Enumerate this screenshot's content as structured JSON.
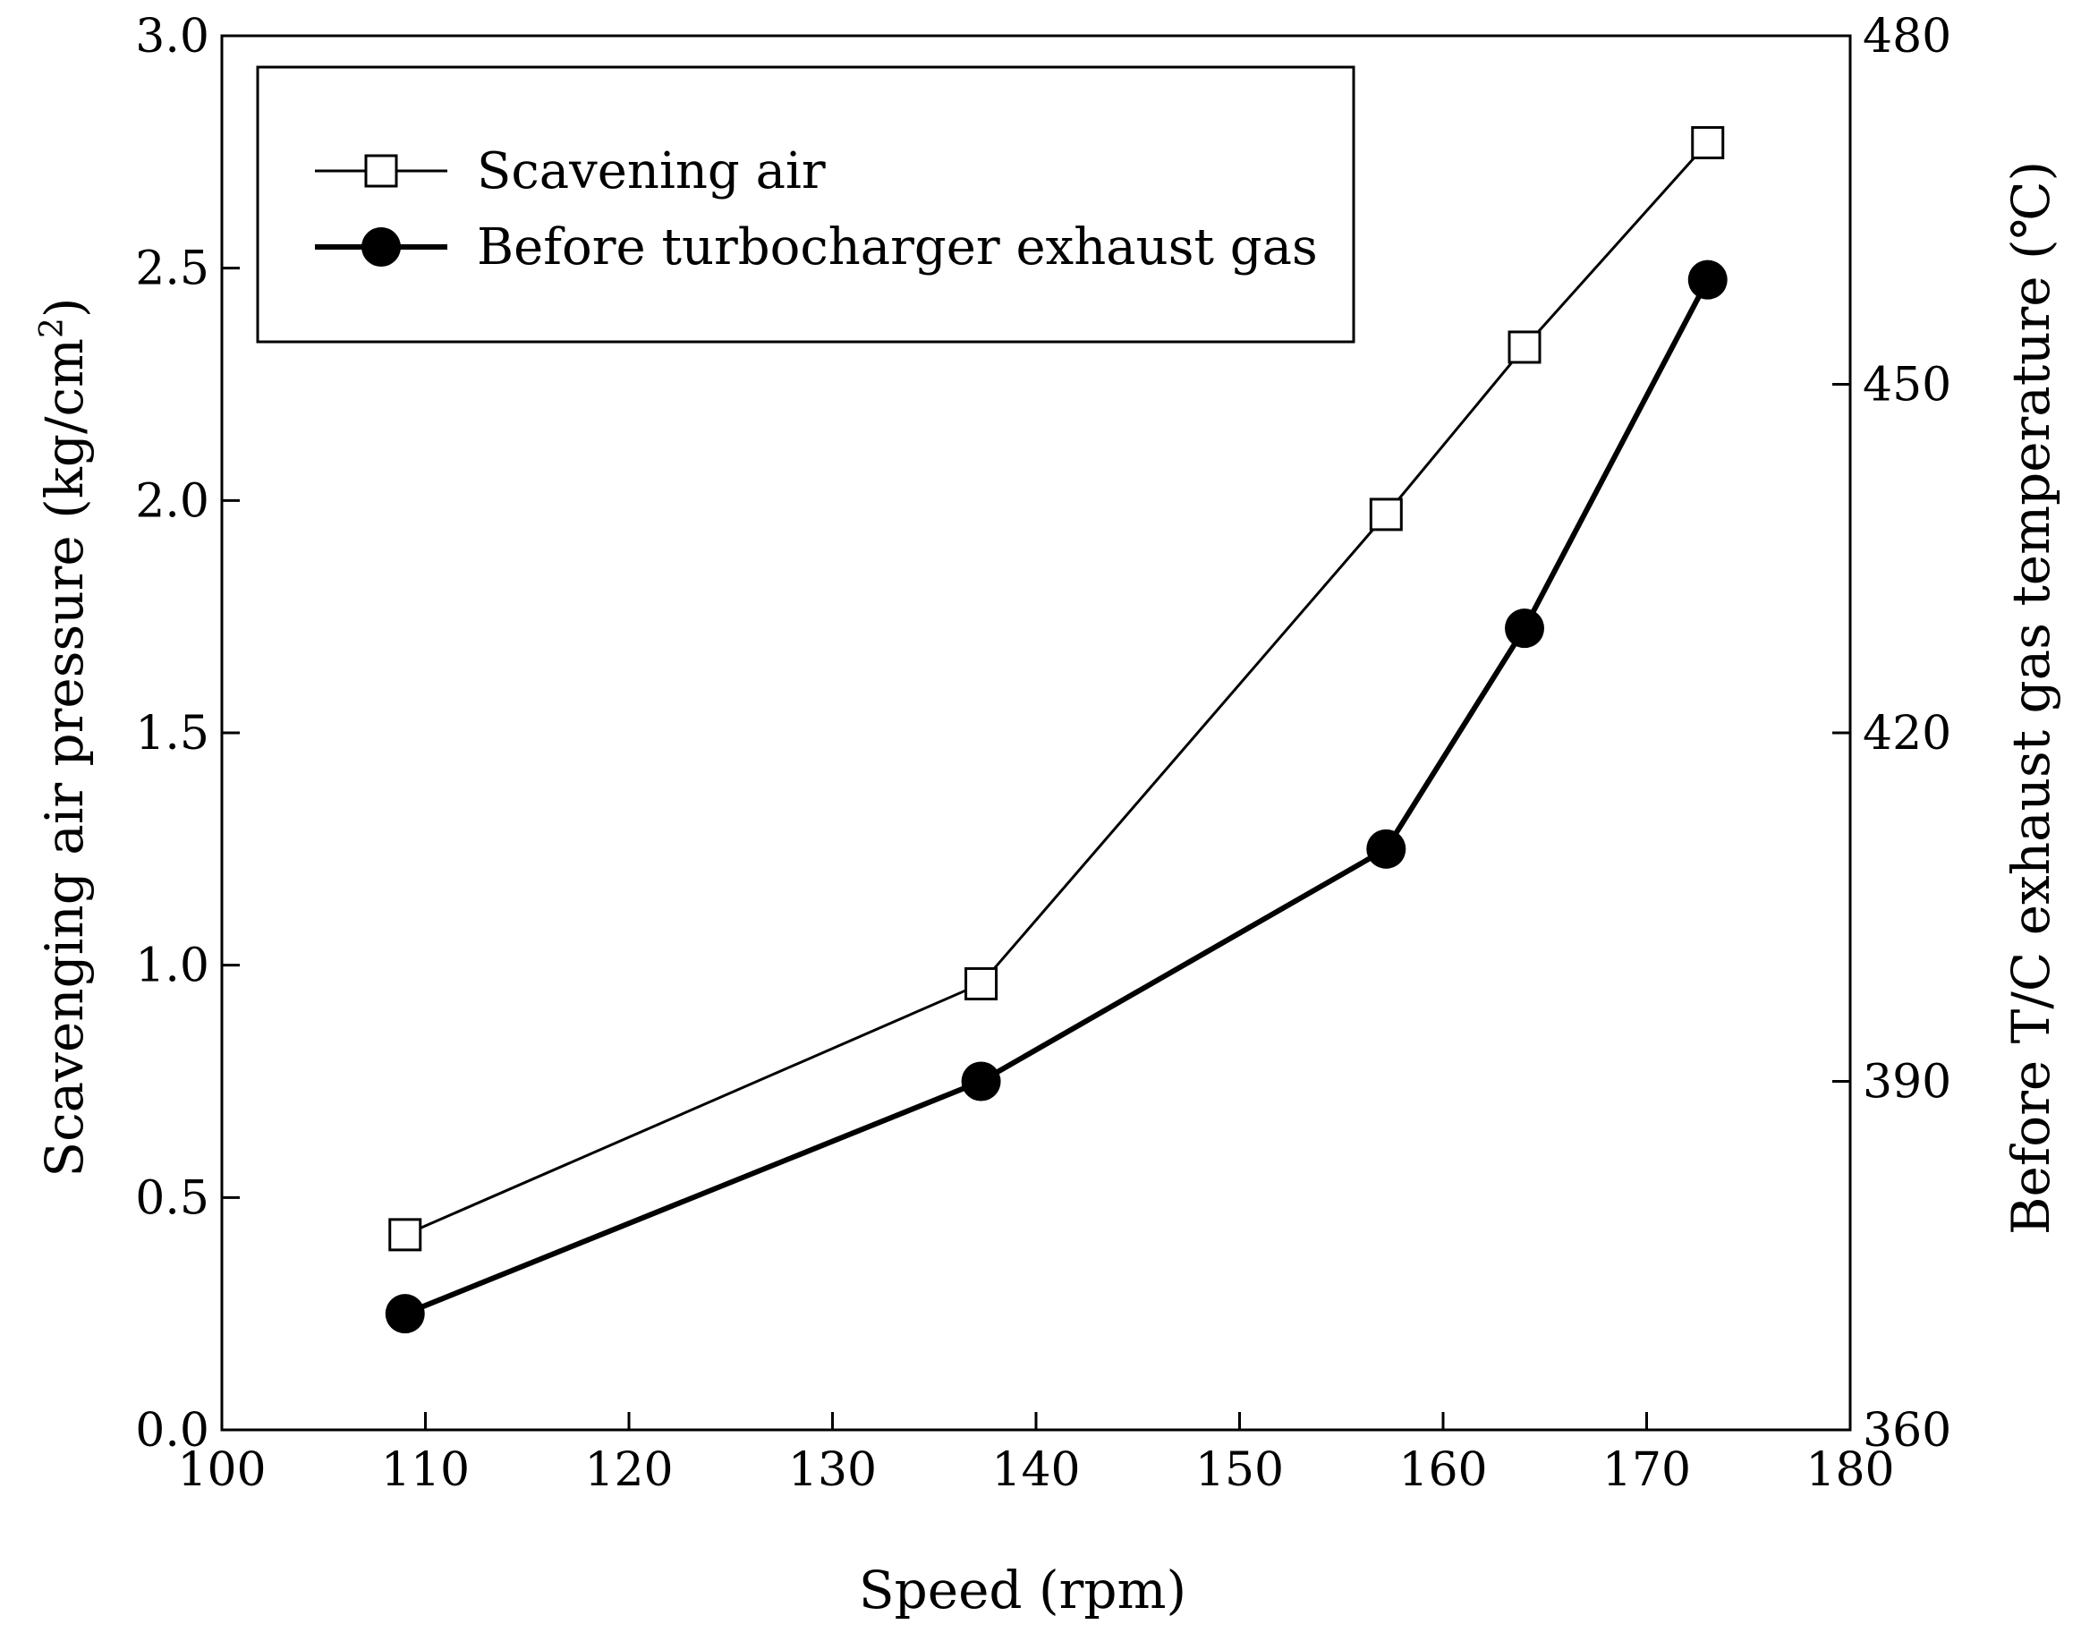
{
  "chart_data": {
    "type": "line",
    "xlabel": "Speed (rpm)",
    "ylabel_left": "Scavenging air pressure (kg/cm",
    "ylabel_left_sup": "2",
    "ylabel_left_end": ")",
    "ylabel_right": "Before T/C exhaust gas temperature (℃)",
    "xlim": [
      100,
      180
    ],
    "ylim_left": [
      0.0,
      3.0
    ],
    "ylim_right": [
      360,
      480
    ],
    "x_ticks": [
      "100",
      "110",
      "120",
      "130",
      "140",
      "150",
      "160",
      "170",
      "180"
    ],
    "y_left_ticks": [
      "0.0",
      "0.5",
      "1.0",
      "1.5",
      "2.0",
      "2.5",
      "3.0"
    ],
    "y_right_ticks": [
      "360",
      "390",
      "420",
      "450",
      "480"
    ],
    "grid": false,
    "legend_position": "top-left",
    "series": [
      {
        "name": "Scavening air",
        "axis": "left",
        "marker": "open-square",
        "color": "#000000",
        "x": [
          109,
          137.3,
          157.2,
          164,
          173
        ],
        "y": [
          0.42,
          0.96,
          1.97,
          2.33,
          2.77
        ]
      },
      {
        "name": "Before turbocharger exhaust gas",
        "axis": "right",
        "marker": "filled-circle",
        "color": "#000000",
        "x": [
          109,
          137.3,
          157.2,
          164,
          173
        ],
        "y": [
          370,
          390,
          410,
          429,
          459
        ]
      }
    ]
  }
}
